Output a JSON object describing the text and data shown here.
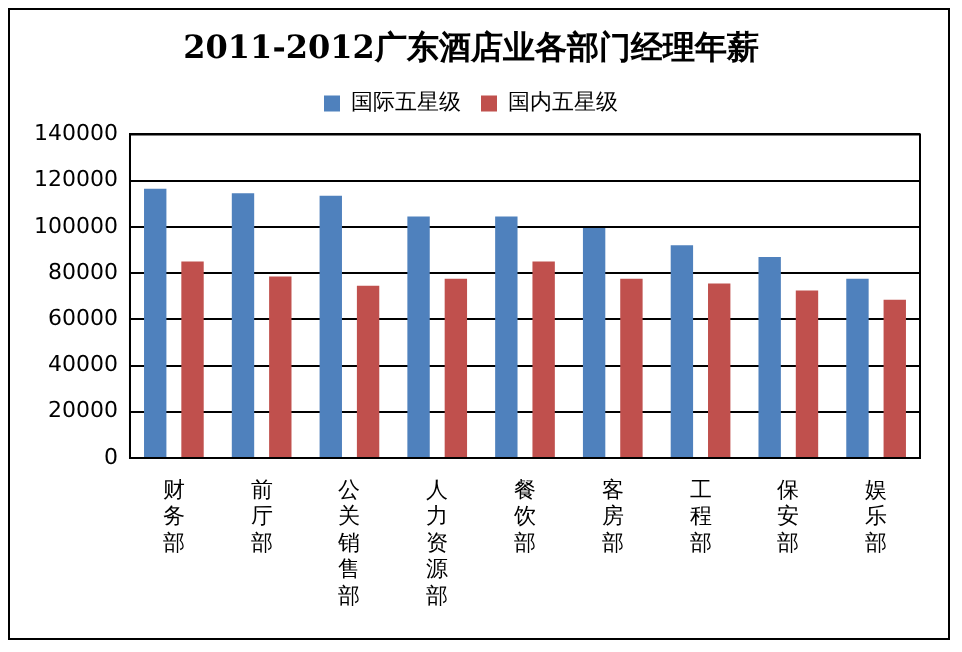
{
  "chart_data": {
    "type": "bar",
    "title": "2011-2012广东酒店业各部门经理年薪",
    "categories": [
      "财务部",
      "前厅部",
      "公关销售部",
      "人力资源部",
      "餐饮部",
      "客房部",
      "工程部",
      "保安部",
      "娱乐部"
    ],
    "series": [
      {
        "name": "国际五星级",
        "color": "#4f81bd",
        "values": [
          116500,
          114500,
          113500,
          104500,
          104500,
          99500,
          92000,
          87000,
          77500
        ]
      },
      {
        "name": "国内五星级",
        "color": "#c0504d",
        "values": [
          85000,
          78500,
          74500,
          77500,
          85000,
          77500,
          75500,
          72500,
          68500
        ]
      }
    ],
    "ylim": [
      0,
      140000
    ],
    "yticks": [
      0,
      20000,
      40000,
      60000,
      80000,
      100000,
      120000,
      140000
    ],
    "grid": "y",
    "legend": "top"
  }
}
